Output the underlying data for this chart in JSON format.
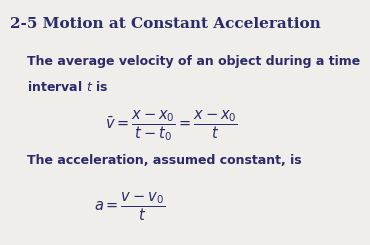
{
  "title": "2-5 Motion at Constant Acceleration",
  "title_color": "#2b2b6b",
  "title_fontsize": 11,
  "body_color": "#2b2b6b",
  "bg_color": "#f0eeea",
  "text1_line1": "The average velocity of an object during a time",
  "text1_line2": "interval $t$ is",
  "eq1": "$\\bar{v} = \\dfrac{x - x_0}{t - t_0} = \\dfrac{x - x_0}{t}$",
  "text2": "The acceleration, assumed constant, is",
  "eq2": "$a = \\dfrac{v - v_0}{t}$",
  "text_fontsize": 9,
  "eq_fontsize": 10.5
}
